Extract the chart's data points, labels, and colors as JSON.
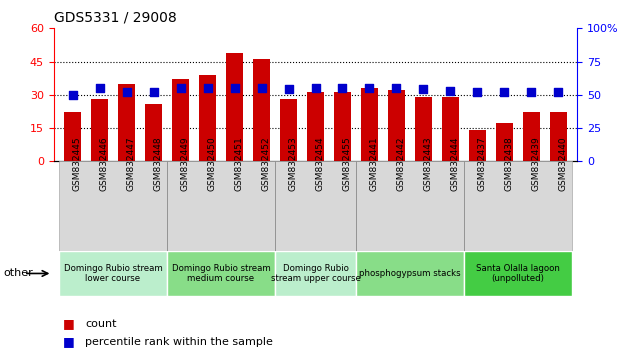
{
  "title": "GDS5331 / 29008",
  "samples": [
    "GSM832445",
    "GSM832446",
    "GSM832447",
    "GSM832448",
    "GSM832449",
    "GSM832450",
    "GSM832451",
    "GSM832452",
    "GSM832453",
    "GSM832454",
    "GSM832455",
    "GSM832441",
    "GSM832442",
    "GSM832443",
    "GSM832444",
    "GSM832437",
    "GSM832438",
    "GSM832439",
    "GSM832440"
  ],
  "counts": [
    22,
    28,
    35,
    26,
    37,
    39,
    49,
    46,
    28,
    31,
    31,
    33,
    32,
    29,
    29,
    14,
    17,
    22,
    22
  ],
  "percentiles": [
    50,
    55,
    52,
    52,
    55,
    55,
    55,
    55,
    54,
    55,
    55,
    55,
    55,
    54,
    53,
    52,
    52,
    52,
    52
  ],
  "bar_color": "#cc0000",
  "dot_color": "#0000cc",
  "ylim_left": [
    0,
    60
  ],
  "ylim_right": [
    0,
    100
  ],
  "yticks_left": [
    0,
    15,
    30,
    45,
    60
  ],
  "yticks_right": [
    0,
    25,
    50,
    75,
    100
  ],
  "groups": [
    {
      "label": "Domingo Rubio stream\nlower course",
      "start": 0,
      "end": 4,
      "color": "#bbeecc"
    },
    {
      "label": "Domingo Rubio stream\nmedium course",
      "start": 4,
      "end": 8,
      "color": "#88dd88"
    },
    {
      "label": "Domingo Rubio\nstream upper course",
      "start": 8,
      "end": 11,
      "color": "#bbeecc"
    },
    {
      "label": "phosphogypsum stacks",
      "start": 11,
      "end": 15,
      "color": "#88dd88"
    },
    {
      "label": "Santa Olalla lagoon\n(unpolluted)",
      "start": 15,
      "end": 19,
      "color": "#44cc44"
    }
  ],
  "xtick_bg": "#d8d8d8",
  "legend_count_label": "count",
  "legend_percentile_label": "percentile rank within the sample",
  "other_label": "other"
}
